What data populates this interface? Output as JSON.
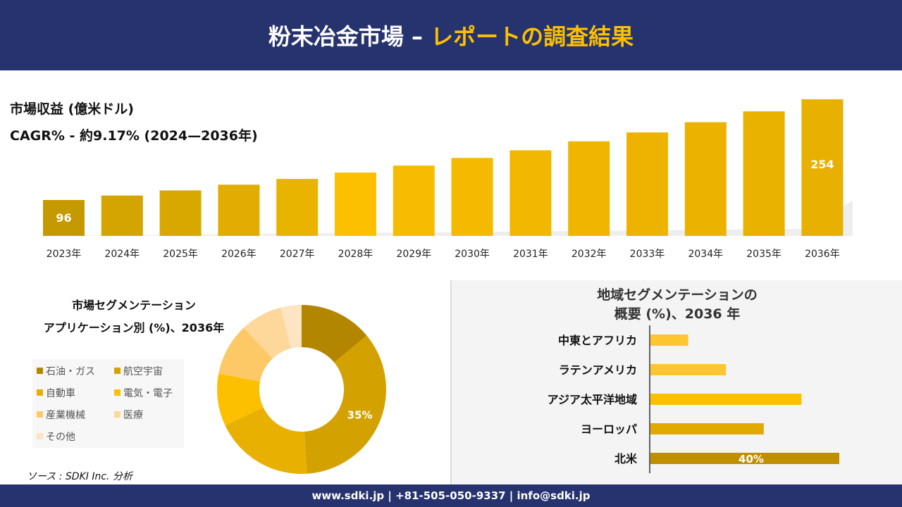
{
  "header": {
    "title_main": "粉末冶金市場 –",
    "title_accent": "レポートの調査結果"
  },
  "revenue": {
    "label": "市場収益 (億米ドル)",
    "cagr": "CAGR% - 約9.17% (2024—2036年)"
  },
  "chart_data": [
    {
      "type": "bar",
      "categories": [
        "2023年",
        "2024年",
        "2025年",
        "2026年",
        "2027年",
        "2028年",
        "2029年",
        "2030年",
        "2031年",
        "2032年",
        "2033年",
        "2034年",
        "2035年",
        "2036年"
      ],
      "values": [
        96,
        103,
        111,
        120,
        129,
        139,
        150,
        162,
        174,
        188,
        202,
        218,
        235,
        254
      ],
      "data_labels": {
        "2023年": "96",
        "2036年": "254"
      },
      "colors": [
        "#c49a00",
        "#d4a500",
        "#d8a800",
        "#e0ad00",
        "#e8b400",
        "#fcc000",
        "#f7bb00",
        "#f5b900",
        "#f2b700",
        "#efb500",
        "#edb300",
        "#ebb200",
        "#e9b100",
        "#e8b000"
      ]
    },
    {
      "type": "pie",
      "title": [
        "市場セグメンテーション",
        "アプリケーション別 (%)、2036年"
      ],
      "labels": [
        "石油・ガス",
        "航空宇宙",
        "自動車",
        "電気・電子",
        "産業機械",
        "医療",
        "その他"
      ],
      "values": [
        14,
        35,
        19,
        10,
        10,
        8,
        4
      ],
      "colors": [
        "#b38600",
        "#d4a200",
        "#e8b000",
        "#fcc000",
        "#fdc966",
        "#fdd89a",
        "#fde4c2"
      ],
      "data_labels": {
        "航空宇宙": "35%"
      }
    },
    {
      "type": "bar",
      "orientation": "horizontal",
      "title": [
        "地域セグメンテーションの",
        "概要 (%)、2036 年"
      ],
      "categories": [
        "中東とアフリカ",
        "ラテンアメリカ",
        "アジア太平洋地域",
        "ヨーロッパ",
        "北米"
      ],
      "values": [
        8,
        16,
        32,
        24,
        40
      ],
      "colors": [
        "#fdc630",
        "#fdc630",
        "#fcc000",
        "#e0aa00",
        "#bf8f00"
      ],
      "data_labels": {
        "北米": "40%"
      }
    }
  ],
  "source": "ソース : SDKI Inc. 分析",
  "footer": "www.sdki.jp | +81-505-050-9337 | info@sdki.jp"
}
